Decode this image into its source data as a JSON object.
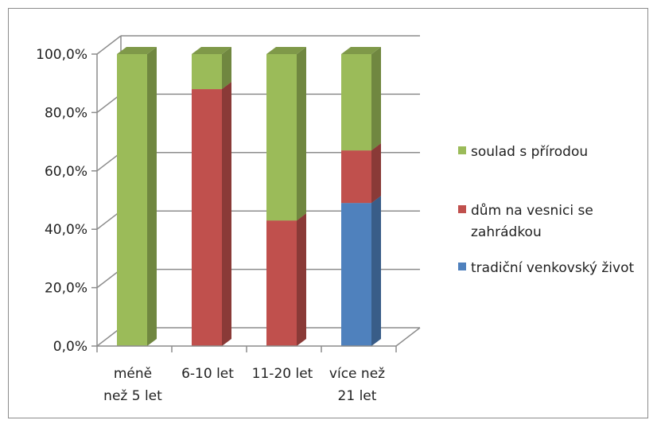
{
  "chart_data": {
    "type": "bar",
    "stacked": true,
    "style": "3d-column",
    "categories": [
      [
        "méně",
        "než 5 let"
      ],
      [
        "6-10 let"
      ],
      [
        "11-20 let"
      ],
      [
        "více než",
        "21 let"
      ]
    ],
    "series": [
      {
        "name": "tradiční venkovský život",
        "color": "#4f81bd",
        "values": [
          0,
          0,
          0,
          49
        ]
      },
      {
        "name": "dům na vesnici se zahrádkou",
        "name_lines": [
          "dům na vesnici se",
          "zahrádkou"
        ],
        "color": "#c0504d",
        "values": [
          0,
          88,
          43,
          18
        ]
      },
      {
        "name": "soulad s přírodou",
        "color": "#9bbb59",
        "values": [
          100,
          12,
          57,
          33
        ]
      }
    ],
    "legend_order": [
      2,
      1,
      0
    ],
    "yticks": [
      "0,0%",
      "20,0%",
      "40,0%",
      "60,0%",
      "80,0%",
      "100,0%"
    ],
    "ylim": [
      0,
      100
    ],
    "grid": true,
    "legend_position": "right",
    "title": "",
    "xlabel": "",
    "ylabel": ""
  }
}
